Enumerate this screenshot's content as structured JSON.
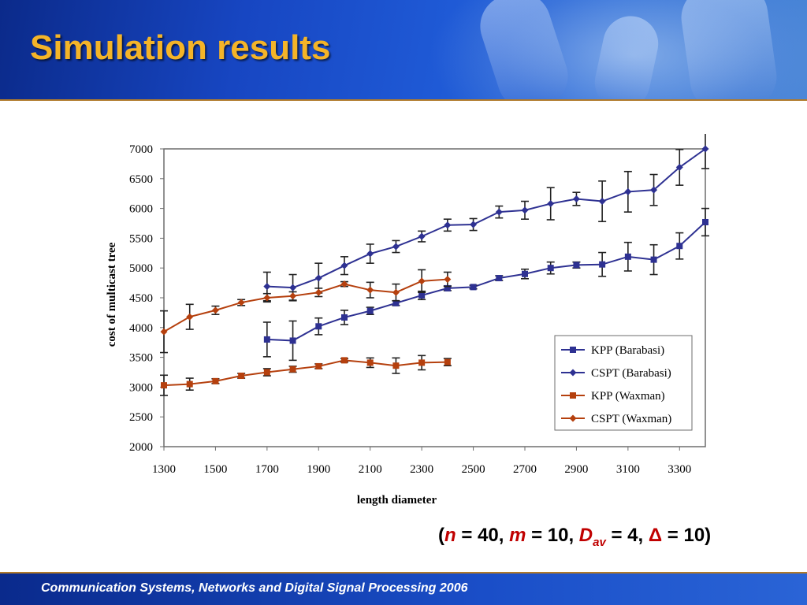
{
  "slide": {
    "title": "Simulation results",
    "footer": "Communication Systems, Networks and Digital Signal Processing 2006",
    "params": {
      "n_var": "n",
      "n_val": " = 40, ",
      "m_var": "m",
      "m_val": " = 10, ",
      "d_var": "D",
      "d_sub": "av",
      "d_val": " = 4, ",
      "delta_sym": "Δ",
      "delta_val": " = 10"
    }
  },
  "chart_data": {
    "type": "line",
    "xlabel": "length diameter",
    "ylabel": "cost of multicast tree",
    "xlim": [
      1300,
      3400
    ],
    "ylim": [
      2000,
      7000
    ],
    "x_ticks": [
      1300,
      1500,
      1700,
      1900,
      2100,
      2300,
      2500,
      2700,
      2900,
      3100,
      3300
    ],
    "y_ticks": [
      2000,
      2500,
      3000,
      3500,
      4000,
      4500,
      5000,
      5500,
      6000,
      6500,
      7000
    ],
    "grid": false,
    "legend_position": "lower-right",
    "series": [
      {
        "name": "KPP (Barabasi)",
        "marker": "square",
        "color": "#2e3192",
        "x": [
          1700,
          1800,
          1900,
          2000,
          2100,
          2200,
          2300,
          2400,
          2500,
          2600,
          2700,
          2800,
          2900,
          3000,
          3100,
          3200,
          3300,
          3400
        ],
        "y": [
          3800,
          3780,
          4020,
          4170,
          4280,
          4410,
          4540,
          4660,
          4680,
          4830,
          4900,
          5000,
          5050,
          5060,
          5190,
          5140,
          5370,
          5770
        ],
        "err": [
          290,
          330,
          140,
          120,
          60,
          40,
          70,
          40,
          30,
          40,
          80,
          100,
          50,
          200,
          240,
          250,
          220,
          230
        ]
      },
      {
        "name": "CSPT (Barabasi)",
        "marker": "diamond",
        "color": "#2e3192",
        "x": [
          1700,
          1800,
          1900,
          2000,
          2100,
          2200,
          2300,
          2400,
          2500,
          2600,
          2700,
          2800,
          2900,
          3000,
          3100,
          3200,
          3300,
          3400
        ],
        "y": [
          4690,
          4670,
          4830,
          5040,
          5240,
          5360,
          5530,
          5720,
          5730,
          5940,
          5970,
          6080,
          6160,
          6120,
          6280,
          6310,
          6690,
          7000
        ],
        "err": [
          240,
          220,
          250,
          150,
          160,
          100,
          90,
          100,
          100,
          100,
          150,
          270,
          110,
          340,
          340,
          260,
          300,
          330
        ]
      },
      {
        "name": "KPP (Waxman)",
        "marker": "square",
        "color": "#b5400e",
        "x": [
          1300,
          1400,
          1500,
          1600,
          1700,
          1800,
          1900,
          2000,
          2100,
          2200,
          2300,
          2400
        ],
        "y": [
          3030,
          3050,
          3100,
          3190,
          3250,
          3300,
          3350,
          3450,
          3410,
          3360,
          3410,
          3420
        ],
        "err": [
          170,
          100,
          40,
          40,
          60,
          50,
          40,
          30,
          80,
          130,
          120,
          60
        ]
      },
      {
        "name": "CSPT (Waxman)",
        "marker": "diamond",
        "color": "#b5400e",
        "x": [
          1300,
          1400,
          1500,
          1600,
          1700,
          1800,
          1900,
          2000,
          2100,
          2200,
          2300,
          2400
        ],
        "y": [
          3930,
          4180,
          4290,
          4420,
          4500,
          4530,
          4590,
          4730,
          4630,
          4590,
          4780,
          4810
        ],
        "err": [
          350,
          210,
          70,
          50,
          70,
          70,
          70,
          40,
          130,
          140,
          190,
          120
        ]
      }
    ]
  }
}
